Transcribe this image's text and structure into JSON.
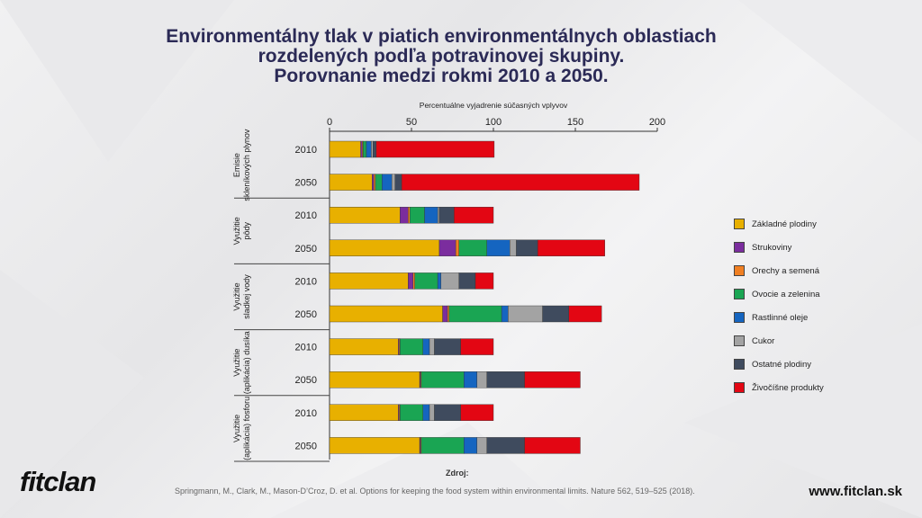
{
  "title": {
    "line1": "Environmentálny tlak v piatich environmentálnych oblastiach",
    "line2": "rozdelených podľa potravinovej skupiny.",
    "line3": "Porovnanie medzi rokmi 2010 a 2050."
  },
  "chart_data": {
    "type": "bar",
    "orientation": "horizontal",
    "stacked": true,
    "xlabel": "Percentuálne vyjadrenie súčasných vplyvov",
    "xlim": [
      0,
      200
    ],
    "xticks": [
      0,
      50,
      100,
      150,
      200
    ],
    "groups": [
      {
        "label_lines": [
          "Emisie",
          "skleníkových plynov"
        ],
        "rows": [
          "2010",
          "2050"
        ]
      },
      {
        "label_lines": [
          "Využitie",
          "pôdy"
        ],
        "rows": [
          "2010",
          "2050"
        ]
      },
      {
        "label_lines": [
          "Využitie",
          "sladkej vody"
        ],
        "rows": [
          "2010",
          "2050"
        ]
      },
      {
        "label_lines": [
          "Využitie",
          "(aplikácia) dusíka"
        ],
        "rows": [
          "2010",
          "2050"
        ]
      },
      {
        "label_lines": [
          "Využitie",
          "(aplikácia) fosforu"
        ],
        "rows": [
          "2010",
          "2050"
        ]
      }
    ],
    "series": [
      {
        "name": "Základné plodiny",
        "color": "#e8b000",
        "values": [
          19,
          26,
          43,
          67,
          48,
          69,
          42,
          55,
          42,
          55
        ]
      },
      {
        "name": "Strukoviny",
        "color": "#7b2d9e",
        "values": [
          1,
          1,
          5,
          10,
          3,
          3,
          0.5,
          0.5,
          0.5,
          0.5
        ]
      },
      {
        "name": "Orechy a semená",
        "color": "#f07f22",
        "values": [
          0.5,
          1,
          1,
          2,
          1,
          1,
          0.5,
          0.5,
          0.5,
          0.5
        ]
      },
      {
        "name": "Ovocie a zelenina",
        "color": "#1aa553",
        "values": [
          2,
          4,
          9,
          17,
          14,
          32,
          14,
          26,
          14,
          26
        ]
      },
      {
        "name": "Rastlinné oleje",
        "color": "#1565c0",
        "values": [
          3,
          6,
          8,
          14,
          2,
          4,
          4,
          8,
          4,
          8
        ]
      },
      {
        "name": "Cukor",
        "color": "#a3a3a3",
        "values": [
          1,
          2,
          1,
          4,
          11,
          21,
          3,
          6,
          3,
          6
        ]
      },
      {
        "name": "Ostatné plodiny",
        "color": "#3f4b5e",
        "values": [
          2,
          4,
          9,
          13,
          10,
          16,
          16,
          23,
          16,
          23
        ]
      },
      {
        "name": "Živočíšne produkty",
        "color": "#e30613",
        "values": [
          72,
          145,
          24,
          41,
          11,
          20,
          20,
          34,
          20,
          34
        ]
      }
    ]
  },
  "source": {
    "label": "Zdroj:",
    "text": "Springmann, M., Clark, M., Mason-D’Croz, D. et al. Options for keeping the food system within environmental limits. Nature 562, 519–525 (2018)."
  },
  "brand": {
    "logo_text": "fitclan",
    "url": "www.fitclan.sk"
  }
}
